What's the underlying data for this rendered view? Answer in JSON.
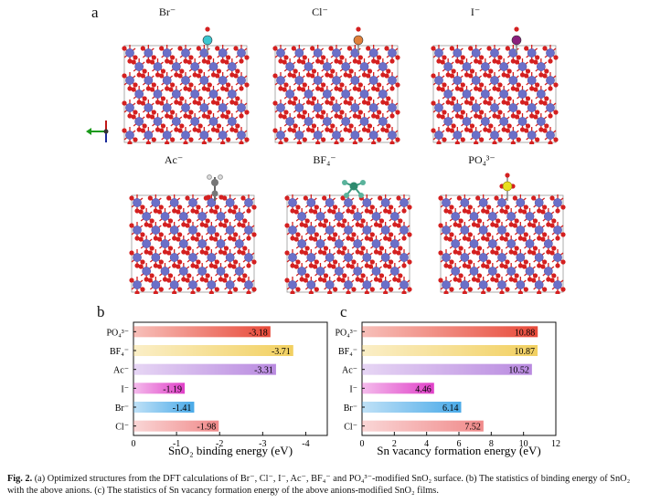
{
  "panels": {
    "a": "a",
    "b": "b",
    "c": "c"
  },
  "structures": [
    {
      "label": "Br⁻",
      "adsorbate_color": "#3cc6d0",
      "adsorbate": "single"
    },
    {
      "label": "Cl⁻",
      "adsorbate_color": "#e0803a",
      "adsorbate": "single"
    },
    {
      "label": "I⁻",
      "adsorbate_color": "#8a1f7d",
      "adsorbate": "single"
    },
    {
      "label": "Ac⁻",
      "adsorbate_color": "#777777",
      "adsorbate": "acetate"
    },
    {
      "label": "BF₄⁻",
      "adsorbate_color": "#2e8a6e",
      "adsorbate": "bf4"
    },
    {
      "label": "PO₄³⁻",
      "adsorbate_color": "#e8e020",
      "adsorbate": "po4"
    }
  ],
  "atom_colors": {
    "Sn": "#6b6fc8",
    "O": "#d42020"
  },
  "chart_data": [
    {
      "type": "bar",
      "orientation": "horizontal",
      "categories": [
        "PO₄³⁻",
        "BF₄⁻",
        "Ac⁻",
        "I⁻",
        "Br⁻",
        "Cl⁻"
      ],
      "values": [
        -3.18,
        -3.71,
        -3.31,
        -1.19,
        -1.41,
        -1.98
      ],
      "value_labels": [
        "-3.18",
        "-3.71",
        "-3.31",
        "-1.19",
        "-1.41",
        "-1.98"
      ],
      "xlabel": "SnO₂ binding energy (eV)",
      "xlim": [
        0,
        -4.5
      ],
      "xticks": [
        0,
        -1,
        -2,
        -3,
        -4
      ],
      "xtick_labels": [
        "0",
        "-1",
        "-2",
        "-3",
        "-4"
      ],
      "colors": [
        "#e84a3a",
        "#f2d060",
        "#b98ae0",
        "#e040c8",
        "#4aaae8",
        "#f08a8a"
      ]
    },
    {
      "type": "bar",
      "orientation": "horizontal",
      "categories": [
        "PO₄³⁻",
        "BF₄⁻",
        "Ac⁻",
        "I⁻",
        "Br⁻",
        "Cl⁻"
      ],
      "values": [
        10.88,
        10.87,
        10.52,
        4.46,
        6.14,
        7.52
      ],
      "value_labels": [
        "10.88",
        "10.87",
        "10.52",
        "4.46",
        "6.14",
        "7.52"
      ],
      "xlabel": "Sn vacancy formation energy (eV)",
      "xlim": [
        0,
        12
      ],
      "xticks": [
        0,
        2,
        4,
        6,
        8,
        10,
        12
      ],
      "xtick_labels": [
        "0",
        "2",
        "4",
        "6",
        "8",
        "10",
        "12"
      ],
      "colors": [
        "#e84a3a",
        "#f2d060",
        "#b98ae0",
        "#e040c8",
        "#4aaae8",
        "#f08a8a"
      ]
    }
  ],
  "caption": {
    "label": "Fig. 2.",
    "text": "(a) Optimized structures from the DFT calculations of Br⁻, Cl⁻, I⁻, Ac⁻, BF₄⁻ and PO₄³⁻-modified SnO₂ surface. (b) The statistics of binding energy of SnO₂ with the above anions. (c) The statistics of Sn vacancy formation energy of the above anions-modified SnO₂ films."
  }
}
